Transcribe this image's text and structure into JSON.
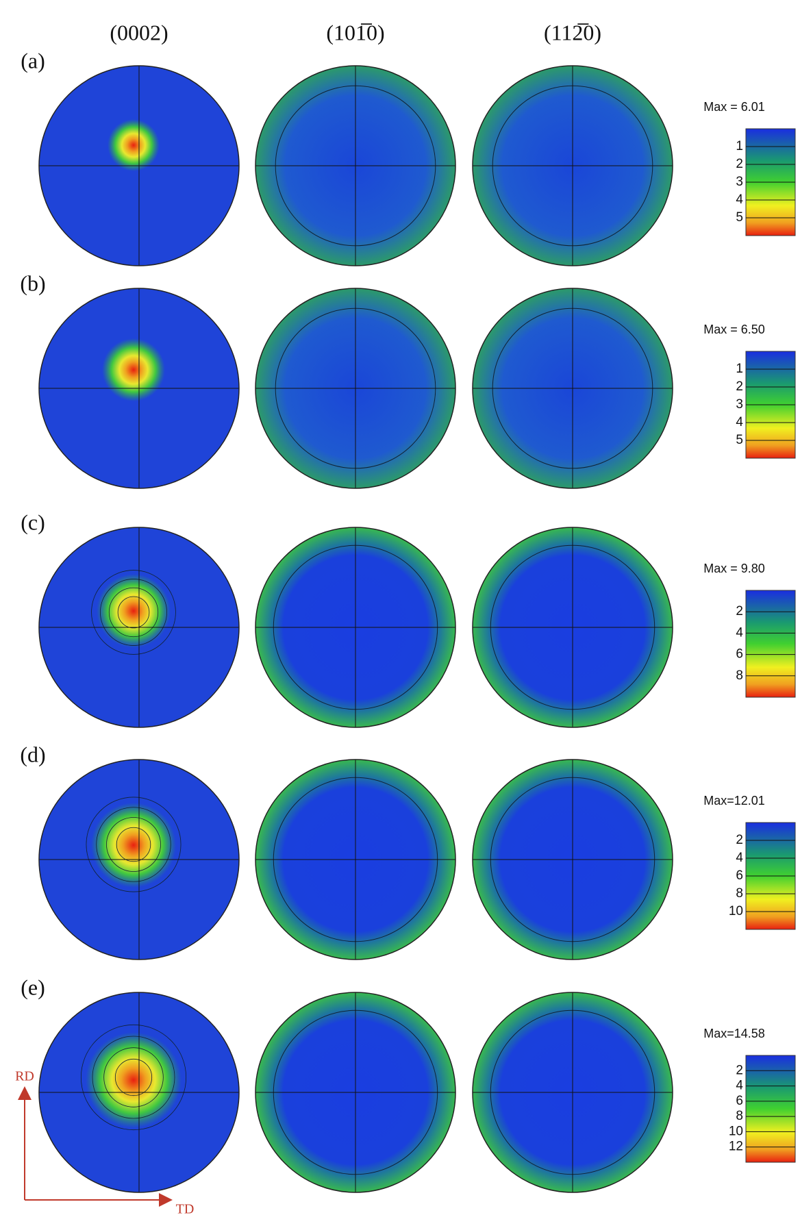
{
  "columns": [
    "(0002)",
    "(101̅0)",
    "(112̅0)"
  ],
  "rows": [
    {
      "label": "(a)",
      "max": "Max = 6.01",
      "scale": [
        1,
        2,
        3,
        4,
        5
      ]
    },
    {
      "label": "(b)",
      "max": "Max = 6.50",
      "scale": [
        1,
        2,
        3,
        4,
        5
      ]
    },
    {
      "label": "(c)",
      "max": "Max = 9.80",
      "scale": [
        2,
        4,
        6,
        8
      ]
    },
    {
      "label": "(d)",
      "max": "Max=12.01",
      "scale": [
        2,
        4,
        6,
        8,
        10
      ]
    },
    {
      "label": "(e)",
      "max": "Max=14.58",
      "scale": [
        2,
        4,
        6,
        8,
        10,
        12
      ]
    }
  ],
  "axes": {
    "rd": "RD",
    "td": "TD"
  }
}
